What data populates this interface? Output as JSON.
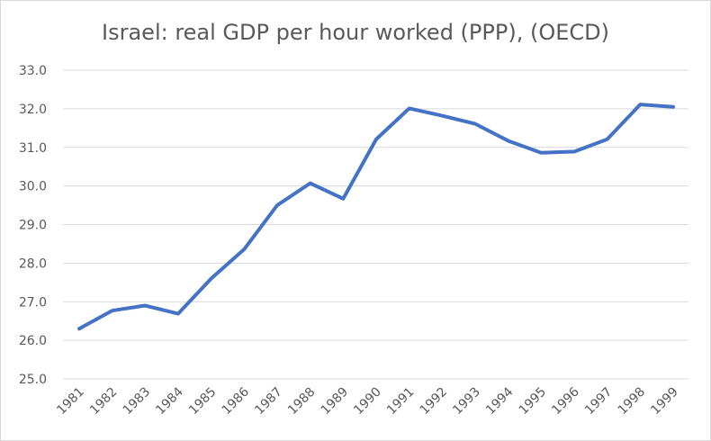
{
  "chart_data": {
    "type": "line",
    "title": "Israel: real GDP per hour worked (PPP), (OECD)",
    "xlabel": "",
    "ylabel": "",
    "categories": [
      "1981",
      "1982",
      "1983",
      "1984",
      "1985",
      "1986",
      "1987",
      "1988",
      "1989",
      "1990",
      "1991",
      "1992",
      "1993",
      "1994",
      "1995",
      "1996",
      "1997",
      "1998",
      "1999"
    ],
    "series": [
      {
        "values": [
          26.3,
          26.77,
          26.9,
          26.69,
          27.6,
          28.36,
          29.5,
          30.07,
          29.67,
          31.21,
          32.01,
          31.82,
          31.61,
          31.17,
          30.86,
          30.89,
          31.21,
          32.11,
          32.05
        ],
        "color": "#4472c4"
      }
    ],
    "ylim": [
      25,
      33
    ],
    "yticks": [
      "25.0",
      "26.0",
      "27.0",
      "28.0",
      "29.0",
      "30.0",
      "31.0",
      "32.0",
      "33.0"
    ],
    "grid": true,
    "legend": "none",
    "colors": {
      "line": "#4472c4",
      "grid": "#d9d9d9",
      "text": "#595959"
    }
  }
}
